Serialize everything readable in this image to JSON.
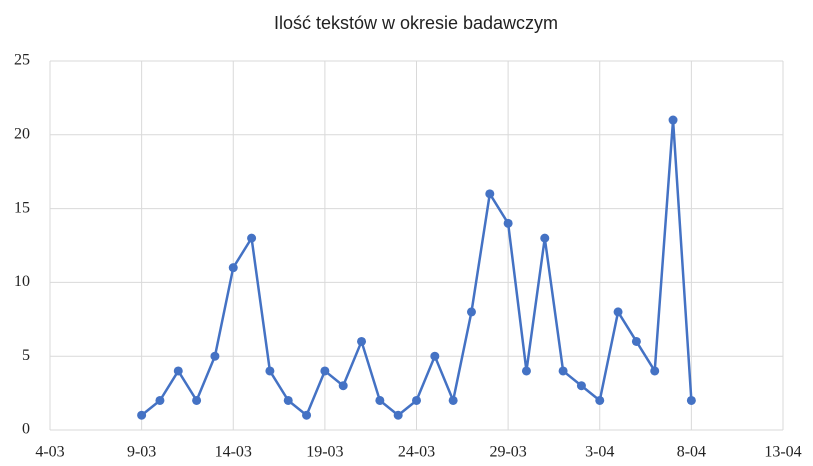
{
  "chart_data": {
    "type": "line",
    "title": "Ilość tekstów w okresie badawczym",
    "x": [
      "9-03",
      "10-03",
      "11-03",
      "12-03",
      "13-03",
      "14-03",
      "15-03",
      "16-03",
      "17-03",
      "18-03",
      "19-03",
      "20-03",
      "21-03",
      "22-03",
      "23-03",
      "24-03",
      "25-03",
      "26-03",
      "27-03",
      "28-03",
      "29-03",
      "30-03",
      "31-03",
      "1-04",
      "2-04",
      "3-04",
      "4-04",
      "5-04",
      "6-04",
      "7-04",
      "8-04"
    ],
    "series": [
      {
        "color": "#4472c4",
        "values": [
          1,
          2,
          4,
          2,
          5,
          11,
          13,
          4,
          2,
          1,
          4,
          3,
          6,
          2,
          1,
          2,
          5,
          2,
          8,
          16,
          14,
          4,
          13,
          4,
          3,
          2,
          8,
          6,
          4,
          21,
          2
        ]
      }
    ],
    "xlim": [
      "4-03",
      "13-04"
    ],
    "xticks": [
      "4-03",
      "9-03",
      "14-03",
      "19-03",
      "24-03",
      "29-03",
      "3-04",
      "8-04",
      "13-04"
    ],
    "ylim": [
      0,
      25
    ],
    "yticks": [
      0,
      5,
      10,
      15,
      20,
      25
    ],
    "grid": true
  }
}
